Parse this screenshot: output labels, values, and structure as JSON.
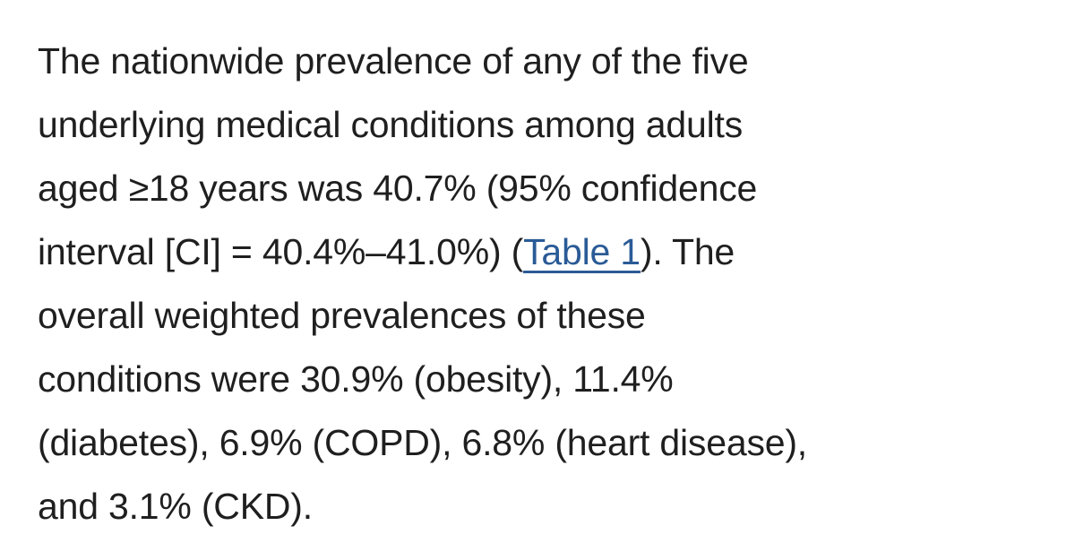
{
  "colors": {
    "background": "#ffffff",
    "text": "#1f1f1f",
    "link": "#2a5b96"
  },
  "paragraph": {
    "line1": "The nationwide prevalence of any of the five",
    "line2": "underlying medical conditions among adults",
    "line3": "aged ≥18 years was 40.7% (95% confidence",
    "line4_before_link": "interval [CI] = 40.4%–41.0%) (",
    "link_text": "Table 1",
    "line4_after_link": "). The",
    "line5": "overall weighted prevalences of these",
    "line6": "conditions were 30.9% (obesity), 11.4%",
    "line7": "(diabetes), 6.9% (COPD), 6.8% (heart disease),",
    "line8": "and 3.1% (CKD)."
  }
}
